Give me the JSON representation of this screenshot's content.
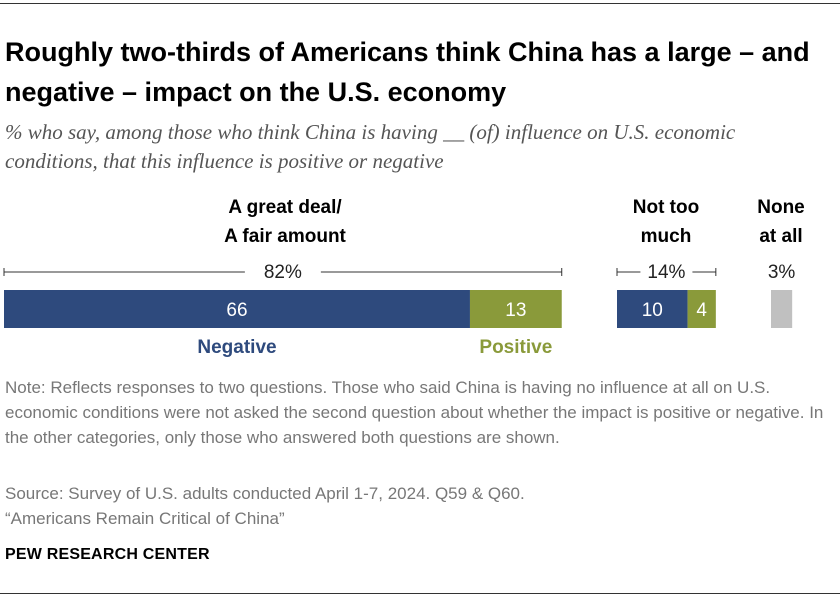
{
  "title": "Roughly two-thirds of Americans think China has a large – and negative – impact on the U.S. economy",
  "subtitle": "% who say, among those who think China is having __ (of) influence on U.S. economic conditions, that this influence is positive or negative",
  "chart_data": {
    "type": "bar",
    "orientation": "horizontal-stacked",
    "groups": [
      {
        "label_line1": "A great deal/",
        "label_line2": "A fair amount",
        "total_label": "82%",
        "total": 82,
        "segments": [
          {
            "series": "Negative",
            "value": 66,
            "label": "66"
          },
          {
            "series": "Positive",
            "value": 13,
            "label": "13"
          }
        ]
      },
      {
        "label_line1": "Not too",
        "label_line2": "much",
        "total_label": "14%",
        "total": 14,
        "segments": [
          {
            "series": "Negative",
            "value": 10,
            "label": "10"
          },
          {
            "series": "Positive",
            "value": 4,
            "label": "4"
          }
        ]
      },
      {
        "label_line1": "None",
        "label_line2": "at all",
        "total_label": "3%",
        "total": 3,
        "segments": [
          {
            "series": "None",
            "value": 3,
            "label": ""
          }
        ]
      }
    ],
    "series": [
      {
        "name": "Negative",
        "color": "#2e4a7d"
      },
      {
        "name": "Positive",
        "color": "#8a9a3a"
      },
      {
        "name": "None",
        "color": "#c0c0c0"
      }
    ],
    "legend": [
      "Negative",
      "Positive"
    ]
  },
  "note": "Note: Reflects responses to two questions. Those who said China is having no influence at all on U.S. economic conditions were not asked the second question about whether the impact is positive or negative. In the other categories, only those who answered both questions are shown.",
  "source": "Source: Survey of U.S. adults conducted April 1-7, 2024. Q59 & Q60.",
  "report": "“Americans Remain Critical of China”",
  "brand": "PEW RESEARCH CENTER"
}
